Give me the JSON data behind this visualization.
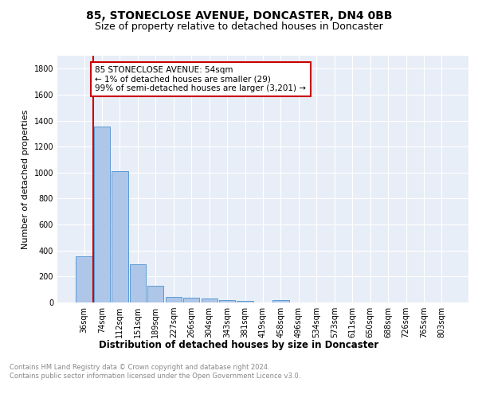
{
  "title": "85, STONECLOSE AVENUE, DONCASTER, DN4 0BB",
  "subtitle": "Size of property relative to detached houses in Doncaster",
  "xlabel": "Distribution of detached houses by size in Doncaster",
  "ylabel": "Number of detached properties",
  "bin_labels": [
    "36sqm",
    "74sqm",
    "112sqm",
    "151sqm",
    "189sqm",
    "227sqm",
    "266sqm",
    "304sqm",
    "343sqm",
    "381sqm",
    "419sqm",
    "458sqm",
    "496sqm",
    "534sqm",
    "573sqm",
    "611sqm",
    "650sqm",
    "688sqm",
    "726sqm",
    "765sqm",
    "803sqm"
  ],
  "bar_heights": [
    355,
    1355,
    1010,
    295,
    130,
    40,
    38,
    30,
    20,
    15,
    0,
    20,
    0,
    0,
    0,
    0,
    0,
    0,
    0,
    0,
    0
  ],
  "bar_color": "#aec6e8",
  "bar_edge_color": "#5b9bd5",
  "annotation_text": "85 STONECLOSE AVENUE: 54sqm\n← 1% of detached houses are smaller (29)\n99% of semi-detached houses are larger (3,201) →",
  "annotation_box_color": "#ffffff",
  "annotation_box_edge_color": "#cc0000",
  "red_line_color": "#cc0000",
  "ylim": [
    0,
    1900
  ],
  "yticks": [
    0,
    200,
    400,
    600,
    800,
    1000,
    1200,
    1400,
    1600,
    1800
  ],
  "bg_color": "#e8eef7",
  "footer_text": "Contains HM Land Registry data © Crown copyright and database right 2024.\nContains public sector information licensed under the Open Government Licence v3.0.",
  "title_fontsize": 10,
  "subtitle_fontsize": 9,
  "xlabel_fontsize": 8.5,
  "ylabel_fontsize": 8,
  "tick_fontsize": 7,
  "annotation_fontsize": 7.5,
  "footer_fontsize": 6
}
